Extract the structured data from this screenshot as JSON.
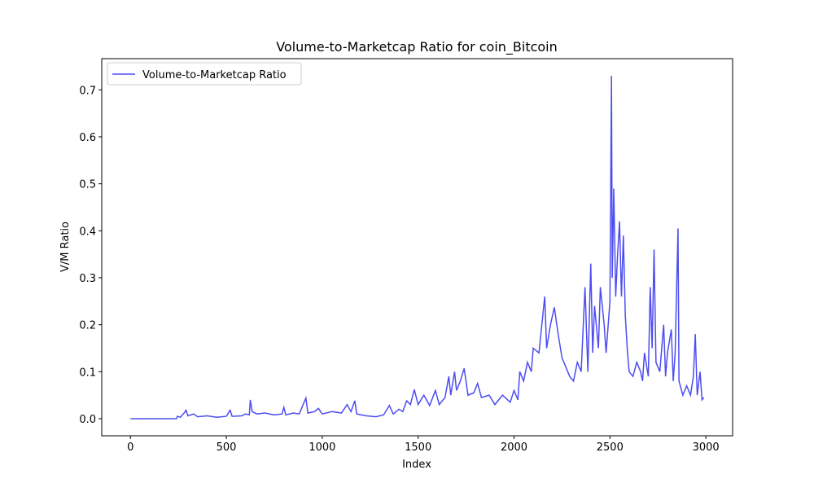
{
  "chart_data": {
    "type": "line",
    "title": "Volume-to-Marketcap Ratio for coin_Bitcoin",
    "xlabel": "Index",
    "ylabel": "V/M Ratio",
    "legend": "upper left",
    "xlim": [
      -149.5,
      3139.5
    ],
    "ylim": [
      -0.0365,
      0.7665
    ],
    "xticks": [
      0,
      500,
      1000,
      1500,
      2000,
      2500,
      3000
    ],
    "yticks": [
      {
        "value": 0,
        "label": "0.0"
      },
      0.1,
      0.2,
      0.3,
      0.4,
      0.5,
      0.6,
      0.7
    ],
    "x": [
      0,
      240,
      245,
      260,
      280,
      290,
      300,
      330,
      350,
      400,
      450,
      500,
      520,
      530,
      580,
      600,
      620,
      625,
      635,
      660,
      700,
      750,
      790,
      800,
      810,
      850,
      880,
      915,
      925,
      960,
      980,
      1000,
      1050,
      1100,
      1130,
      1150,
      1170,
      1180,
      1230,
      1280,
      1320,
      1350,
      1370,
      1400,
      1420,
      1440,
      1460,
      1480,
      1500,
      1530,
      1560,
      1590,
      1610,
      1640,
      1660,
      1670,
      1690,
      1700,
      1720,
      1740,
      1760,
      1790,
      1810,
      1830,
      1870,
      1900,
      1940,
      1980,
      2000,
      2020,
      2030,
      2050,
      2070,
      2090,
      2100,
      2130,
      2160,
      2170,
      2190,
      2210,
      2230,
      2250,
      2270,
      2290,
      2310,
      2330,
      2350,
      2370,
      2385,
      2400,
      2410,
      2420,
      2440,
      2450,
      2470,
      2480,
      2500,
      2508,
      2512,
      2520,
      2530,
      2540,
      2550,
      2560,
      2570,
      2580,
      2590,
      2600,
      2620,
      2640,
      2660,
      2670,
      2680,
      2700,
      2710,
      2720,
      2730,
      2740,
      2760,
      2780,
      2790,
      2800,
      2820,
      2830,
      2840,
      2855,
      2860,
      2880,
      2900,
      2920,
      2935,
      2945,
      2955,
      2970,
      2980,
      2990
    ],
    "series": [
      {
        "name": "Volume-to-Marketcap Ratio",
        "color": "#4d4df2",
        "values": [
          0,
          0,
          0.005,
          0.003,
          0.012,
          0.018,
          0.006,
          0.01,
          0.004,
          0.006,
          0.003,
          0.005,
          0.018,
          0.005,
          0.006,
          0.01,
          0.008,
          0.04,
          0.015,
          0.01,
          0.012,
          0.008,
          0.01,
          0.024,
          0.008,
          0.012,
          0.01,
          0.044,
          0.012,
          0.015,
          0.022,
          0.01,
          0.015,
          0.012,
          0.03,
          0.015,
          0.038,
          0.01,
          0.006,
          0.004,
          0.008,
          0.028,
          0.01,
          0.02,
          0.015,
          0.038,
          0.03,
          0.062,
          0.03,
          0.05,
          0.028,
          0.06,
          0.03,
          0.045,
          0.09,
          0.05,
          0.1,
          0.06,
          0.08,
          0.107,
          0.05,
          0.055,
          0.075,
          0.045,
          0.05,
          0.03,
          0.05,
          0.035,
          0.06,
          0.04,
          0.1,
          0.08,
          0.12,
          0.1,
          0.15,
          0.14,
          0.26,
          0.15,
          0.2,
          0.237,
          0.18,
          0.13,
          0.11,
          0.09,
          0.08,
          0.12,
          0.1,
          0.28,
          0.1,
          0.33,
          0.14,
          0.24,
          0.15,
          0.28,
          0.2,
          0.14,
          0.25,
          0.73,
          0.3,
          0.49,
          0.26,
          0.35,
          0.42,
          0.26,
          0.39,
          0.22,
          0.15,
          0.1,
          0.09,
          0.12,
          0.1,
          0.08,
          0.14,
          0.09,
          0.28,
          0.15,
          0.36,
          0.12,
          0.1,
          0.2,
          0.09,
          0.14,
          0.19,
          0.08,
          0.14,
          0.405,
          0.08,
          0.05,
          0.07,
          0.05,
          0.09,
          0.18,
          0.05,
          0.1,
          0.04,
          0.045
        ]
      }
    ]
  }
}
